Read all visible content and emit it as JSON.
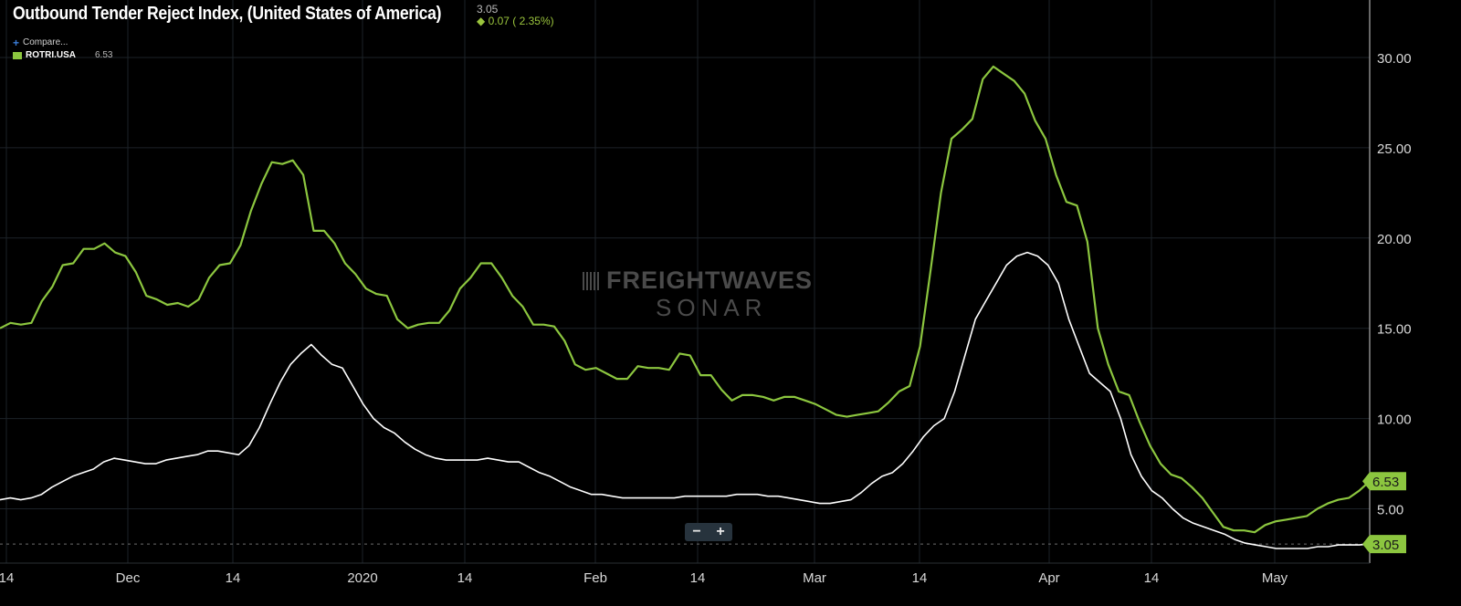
{
  "header": {
    "title": "Outbound Tender Reject Index, (United States of America)",
    "last": "3.05",
    "change": "◆ 0.07 ( 2.35%)"
  },
  "legend": {
    "compare_label": "Compare...",
    "series_symbol": "ROTRI.USA",
    "series_value": "6.53"
  },
  "watermark": {
    "line1": "FREIGHTWAVES",
    "line2": "SONAR"
  },
  "zoom": {
    "minus": "−",
    "plus": "+"
  },
  "colors": {
    "green": "#8cc63f",
    "white": "#ffffff",
    "background": "#000000",
    "grid": "#1c2228"
  },
  "chart_data": {
    "type": "line",
    "title": "Outbound Tender Reject Index, (United States of America)",
    "ylim": [
      2.3,
      33
    ],
    "y_ticks": [
      "30.00",
      "25.00",
      "20.00",
      "15.00",
      "10.00",
      "5.00"
    ],
    "x_ticks": [
      "14",
      "Dec",
      "14",
      "2020",
      "14",
      "Feb",
      "14",
      "Mar",
      "14",
      "Apr",
      "14",
      "May"
    ],
    "grid": true,
    "last_labels": {
      "green": "6.53",
      "white": "3.05"
    },
    "series": [
      {
        "name": "ROTRI.USA",
        "color": "#8cc63f",
        "values": [
          15.0,
          15.3,
          15.2,
          15.3,
          16.5,
          17.3,
          18.5,
          18.6,
          19.4,
          19.4,
          19.7,
          19.2,
          19.0,
          18.1,
          16.8,
          16.6,
          16.3,
          16.4,
          16.2,
          16.6,
          17.8,
          18.5,
          18.6,
          19.6,
          21.5,
          23.0,
          24.2,
          24.1,
          24.3,
          23.5,
          20.4,
          20.4,
          19.7,
          18.6,
          18.0,
          17.2,
          16.9,
          16.8,
          15.5,
          15.0,
          15.2,
          15.3,
          15.3,
          16.0,
          17.2,
          17.8,
          18.6,
          18.6,
          17.8,
          16.8,
          16.2,
          15.2,
          15.2,
          15.1,
          14.3,
          13.0,
          12.7,
          12.8,
          12.5,
          12.2,
          12.2,
          12.9,
          12.8,
          12.8,
          12.7,
          13.6,
          13.5,
          12.4,
          12.4,
          11.6,
          11.0,
          11.3,
          11.3,
          11.2,
          11.0,
          11.2,
          11.2,
          11.0,
          10.8,
          10.5,
          10.2,
          10.1,
          10.2,
          10.3,
          10.4,
          10.9,
          11.5,
          11.8,
          14.0,
          18.2,
          22.5,
          25.5,
          26.0,
          26.6,
          28.8,
          29.5,
          29.1,
          28.7,
          28.0,
          26.5,
          25.5,
          23.5,
          22.0,
          21.8,
          19.8,
          15.0,
          13.0,
          11.5,
          11.3,
          9.8,
          8.5,
          7.5,
          6.9,
          6.7,
          6.2,
          5.6,
          4.8,
          4.0,
          3.8,
          3.8,
          3.7,
          4.1,
          4.3,
          4.4,
          4.5,
          4.6,
          5.0,
          5.3,
          5.5,
          5.6,
          6.0,
          6.53
        ]
      },
      {
        "name": "",
        "color": "#ffffff",
        "values": [
          5.5,
          5.6,
          5.5,
          5.6,
          5.8,
          6.2,
          6.5,
          6.8,
          7.0,
          7.2,
          7.6,
          7.8,
          7.7,
          7.6,
          7.5,
          7.5,
          7.7,
          7.8,
          7.9,
          8.0,
          8.2,
          8.2,
          8.1,
          8.0,
          8.5,
          9.5,
          10.8,
          12.0,
          13.0,
          13.6,
          14.1,
          13.5,
          13.0,
          12.8,
          11.8,
          10.8,
          10.0,
          9.5,
          9.2,
          8.7,
          8.3,
          8.0,
          7.8,
          7.7,
          7.7,
          7.7,
          7.7,
          7.8,
          7.7,
          7.6,
          7.6,
          7.3,
          7.0,
          6.8,
          6.5,
          6.2,
          6.0,
          5.8,
          5.8,
          5.7,
          5.6,
          5.6,
          5.6,
          5.6,
          5.6,
          5.6,
          5.7,
          5.7,
          5.7,
          5.7,
          5.7,
          5.8,
          5.8,
          5.8,
          5.7,
          5.7,
          5.6,
          5.5,
          5.4,
          5.3,
          5.3,
          5.4,
          5.5,
          5.9,
          6.4,
          6.8,
          7.0,
          7.5,
          8.2,
          9.0,
          9.6,
          10.0,
          11.5,
          13.5,
          15.5,
          16.5,
          17.5,
          18.5,
          19.0,
          19.2,
          19.0,
          18.5,
          17.5,
          15.5,
          14.0,
          12.5,
          12.0,
          11.5,
          10.0,
          8.0,
          6.8,
          6.0,
          5.6,
          5.0,
          4.5,
          4.2,
          4.0,
          3.8,
          3.6,
          3.3,
          3.1,
          3.0,
          2.9,
          2.8,
          2.8,
          2.8,
          2.8,
          2.9,
          2.9,
          3.0,
          3.0,
          3.0,
          3.05
        ]
      }
    ]
  }
}
